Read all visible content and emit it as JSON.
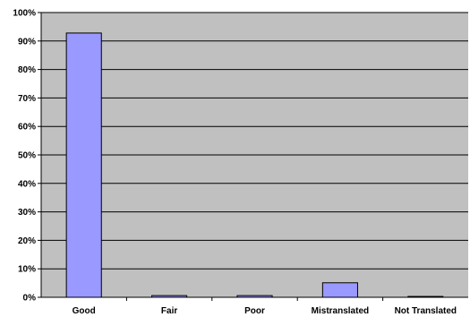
{
  "chart_data": {
    "type": "bar",
    "title": "",
    "xlabel": "",
    "ylabel": "",
    "categories": [
      "Good",
      "Fair",
      "Poor",
      "Mistranslated",
      "Not Translated"
    ],
    "values": [
      92.8,
      0.6,
      0.6,
      5.1,
      0.3
    ],
    "ylim": [
      0,
      100
    ],
    "yticks": [
      0,
      10,
      20,
      30,
      40,
      50,
      60,
      70,
      80,
      90,
      100
    ],
    "ytick_labels": [
      "0%",
      "10%",
      "20%",
      "30%",
      "40%",
      "50%",
      "60%",
      "70%",
      "80%",
      "90%",
      "100%"
    ],
    "grid": true,
    "legend": "none",
    "colors": {
      "plot_background": "#c0c0c0",
      "bar_fill": "#9999ff",
      "bar_stroke": "#000000",
      "grid": "#000000"
    }
  }
}
